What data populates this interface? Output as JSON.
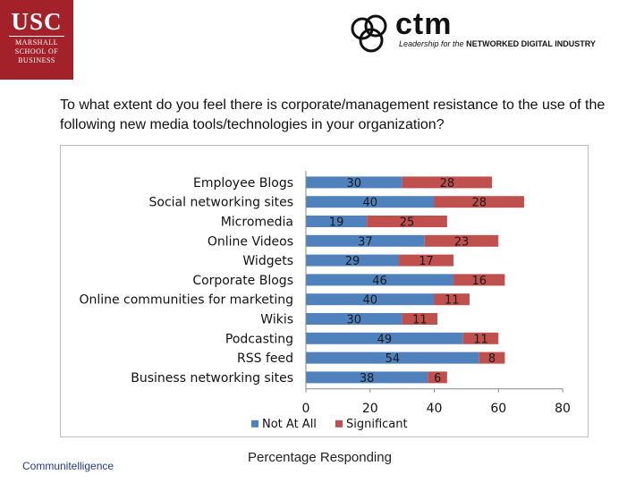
{
  "logos": {
    "usc": {
      "big": "USC",
      "line1": "MARSHALL",
      "line2": "SCHOOL OF",
      "line3": "BUSINESS"
    },
    "ctm": {
      "name": "ctm",
      "tag_italic": "Leadership for the",
      "tag_bold": "NETWORKED DIGITAL INDUSTRY"
    }
  },
  "question": "To what extent do you feel there is corporate/management resistance to the use of the following new media tools/technologies in your organization?",
  "footer": {
    "source": "Communitelligence",
    "axis_caption": "Percentage Responding"
  },
  "colors": {
    "not_at_all": "#4f81bd",
    "significant": "#c0504d"
  },
  "chart_data": {
    "type": "bar",
    "orientation": "horizontal",
    "stacked": true,
    "categories": [
      "Employee Blogs",
      "Social networking sites",
      "Micromedia",
      "Online Videos",
      "Widgets",
      "Corporate Blogs",
      "Online communities for marketing",
      "Wikis",
      "Podcasting",
      "RSS feed",
      "Business networking sites"
    ],
    "series": [
      {
        "name": "Not At All",
        "values": [
          30,
          40,
          19,
          37,
          29,
          46,
          40,
          30,
          49,
          54,
          38
        ]
      },
      {
        "name": "Significant",
        "values": [
          28,
          28,
          25,
          23,
          17,
          16,
          11,
          11,
          11,
          8,
          6
        ]
      }
    ],
    "xlim": [
      0,
      80
    ],
    "xticks": [
      "0",
      "20",
      "40",
      "60",
      "80"
    ],
    "grid": false,
    "legend": "bottom"
  }
}
